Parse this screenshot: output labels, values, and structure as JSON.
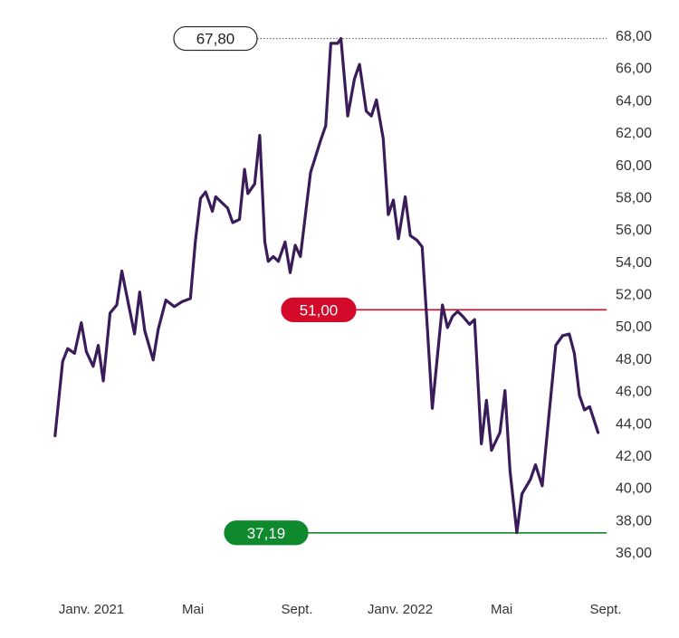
{
  "chart_data": {
    "type": "line",
    "title": "",
    "xlabel": "",
    "ylabel": "",
    "ylim": [
      35.0,
      68.5
    ],
    "y_ticks": [
      "36,00",
      "38,00",
      "40,00",
      "42,00",
      "44,00",
      "46,00",
      "48,00",
      "50,00",
      "52,00",
      "54,00",
      "56,00",
      "58,00",
      "60,00",
      "62,00",
      "64,00",
      "66,00",
      "68,00"
    ],
    "y_tick_values": [
      36,
      38,
      40,
      42,
      44,
      46,
      48,
      50,
      52,
      54,
      56,
      58,
      60,
      62,
      64,
      66,
      68
    ],
    "x_ticks": [
      {
        "label": "Janv. 2021",
        "date": "2021-01-01"
      },
      {
        "label": "Mai",
        "date": "2021-05-01"
      },
      {
        "label": "Sept.",
        "date": "2021-09-01"
      },
      {
        "label": "Janv. 2022",
        "date": "2022-01-01"
      },
      {
        "label": "Mai",
        "date": "2022-05-01"
      },
      {
        "label": "Sept.",
        "date": "2022-09-01"
      }
    ],
    "x_range": [
      "2020-11-19",
      "2022-09-03"
    ],
    "grid": false,
    "series": [
      {
        "color": "#3b1c5a",
        "points": [
          [
            "2020-11-19",
            43.2
          ],
          [
            "2020-11-28",
            47.8
          ],
          [
            "2020-12-04",
            48.6
          ],
          [
            "2020-12-12",
            48.3
          ],
          [
            "2020-12-20",
            50.2
          ],
          [
            "2020-12-26",
            48.4
          ],
          [
            "2021-01-03",
            47.5
          ],
          [
            "2021-01-09",
            48.8
          ],
          [
            "2021-01-15",
            46.6
          ],
          [
            "2021-01-23",
            50.8
          ],
          [
            "2021-01-31",
            51.3
          ],
          [
            "2021-02-06",
            53.4
          ],
          [
            "2021-02-14",
            51.3
          ],
          [
            "2021-02-21",
            49.5
          ],
          [
            "2021-02-27",
            52.1
          ],
          [
            "2021-03-05",
            49.7
          ],
          [
            "2021-03-15",
            47.9
          ],
          [
            "2021-03-21",
            49.8
          ],
          [
            "2021-03-30",
            51.6
          ],
          [
            "2021-04-09",
            51.2
          ],
          [
            "2021-04-18",
            51.5
          ],
          [
            "2021-04-28",
            51.7
          ],
          [
            "2021-05-04",
            55.3
          ],
          [
            "2021-05-10",
            57.9
          ],
          [
            "2021-05-16",
            58.3
          ],
          [
            "2021-05-24",
            57.1
          ],
          [
            "2021-05-28",
            58.0
          ],
          [
            "2021-06-05",
            57.6
          ],
          [
            "2021-06-11",
            57.3
          ],
          [
            "2021-06-17",
            56.4
          ],
          [
            "2021-06-25",
            56.6
          ],
          [
            "2021-07-01",
            59.7
          ],
          [
            "2021-07-05",
            58.2
          ],
          [
            "2021-07-13",
            58.8
          ],
          [
            "2021-07-19",
            61.8
          ],
          [
            "2021-07-25",
            55.2
          ],
          [
            "2021-07-29",
            54.0
          ],
          [
            "2021-08-04",
            54.3
          ],
          [
            "2021-08-10",
            54.0
          ],
          [
            "2021-08-18",
            55.2
          ],
          [
            "2021-08-24",
            53.3
          ],
          [
            "2021-08-30",
            55.0
          ],
          [
            "2021-09-05",
            54.3
          ],
          [
            "2021-09-17",
            59.5
          ],
          [
            "2021-09-29",
            61.5
          ],
          [
            "2021-10-05",
            62.4
          ],
          [
            "2021-10-11",
            67.5
          ],
          [
            "2021-10-19",
            67.5
          ],
          [
            "2021-10-23",
            67.8
          ],
          [
            "2021-10-31",
            63.0
          ],
          [
            "2021-11-08",
            65.3
          ],
          [
            "2021-11-14",
            66.2
          ],
          [
            "2021-11-22",
            63.3
          ],
          [
            "2021-11-28",
            63.0
          ],
          [
            "2021-12-04",
            64.0
          ],
          [
            "2021-12-12",
            61.6
          ],
          [
            "2021-12-18",
            56.9
          ],
          [
            "2021-12-24",
            57.8
          ],
          [
            "2021-12-30",
            55.4
          ],
          [
            "2022-01-07",
            58.0
          ],
          [
            "2022-01-13",
            55.6
          ],
          [
            "2022-01-21",
            55.3
          ],
          [
            "2022-01-27",
            54.9
          ],
          [
            "2022-02-02",
            50.0
          ],
          [
            "2022-02-08",
            44.9
          ],
          [
            "2022-02-20",
            51.3
          ],
          [
            "2022-02-26",
            49.9
          ],
          [
            "2022-03-04",
            50.6
          ],
          [
            "2022-03-10",
            50.9
          ],
          [
            "2022-03-16",
            50.6
          ],
          [
            "2022-03-24",
            50.1
          ],
          [
            "2022-03-30",
            50.4
          ],
          [
            "2022-04-07",
            42.7
          ],
          [
            "2022-04-13",
            45.4
          ],
          [
            "2022-04-19",
            42.3
          ],
          [
            "2022-04-29",
            43.4
          ],
          [
            "2022-05-05",
            46.0
          ],
          [
            "2022-05-11",
            41.0
          ],
          [
            "2022-05-19",
            37.2
          ],
          [
            "2022-05-25",
            39.6
          ],
          [
            "2022-06-04",
            40.5
          ],
          [
            "2022-06-10",
            41.4
          ],
          [
            "2022-06-18",
            40.1
          ],
          [
            "2022-06-26",
            44.5
          ],
          [
            "2022-07-04",
            48.8
          ],
          [
            "2022-07-12",
            49.4
          ],
          [
            "2022-07-20",
            49.5
          ],
          [
            "2022-07-26",
            48.3
          ],
          [
            "2022-08-01",
            45.7
          ],
          [
            "2022-08-07",
            44.8
          ],
          [
            "2022-08-13",
            45.0
          ],
          [
            "2022-08-23",
            43.4
          ]
        ]
      }
    ],
    "reference_lines": [
      {
        "value": 51.0,
        "label": "51,00",
        "color": "#d40a2b",
        "style": "solid",
        "label_style": "filled"
      },
      {
        "value": 37.19,
        "label": "37,19",
        "color": "#0e8a2c",
        "style": "solid",
        "label_style": "filled"
      },
      {
        "value": 67.8,
        "label": "67,80",
        "color": "#555555",
        "style": "dotted",
        "label_style": "outline"
      }
    ]
  }
}
